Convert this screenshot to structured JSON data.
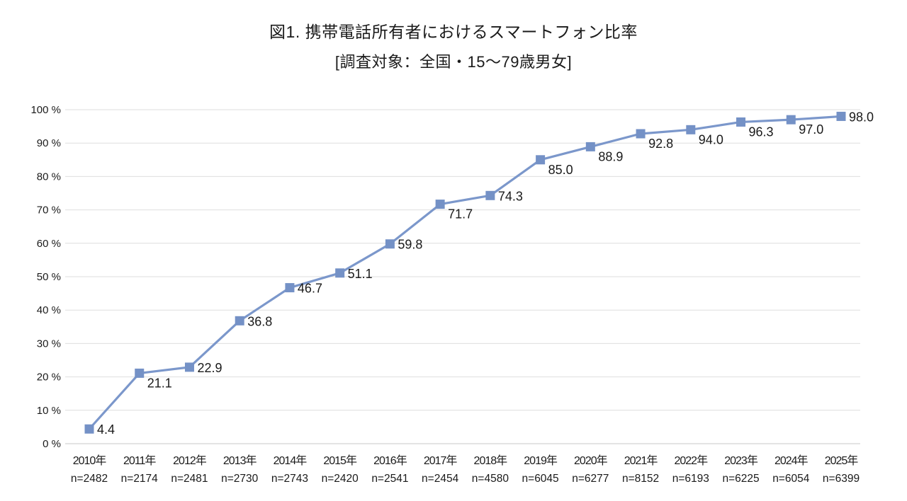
{
  "colors": {
    "line": "#7B97CB",
    "marker": "#7491C6",
    "gridline": "#DEDEDE",
    "axis_line": "#C9C9C9",
    "text": "#1A1A1A"
  },
  "chart_data": {
    "type": "line",
    "title": "図1. 携帯電話所有者におけるスマートフォン比率",
    "subtitle": "[調査対象：全国・15〜79歳男女]",
    "categories": [
      "2010年",
      "2011年",
      "2012年",
      "2013年",
      "2014年",
      "2015年",
      "2016年",
      "2017年",
      "2018年",
      "2019年",
      "2020年",
      "2021年",
      "2022年",
      "2023年",
      "2024年",
      "2025年"
    ],
    "n_labels": [
      "n=2482",
      "n=2174",
      "n=2481",
      "n=2730",
      "n=2743",
      "n=2420",
      "n=2541",
      "n=2454",
      "n=4580",
      "n=6045",
      "n=6277",
      "n=8152",
      "n=6193",
      "n=6225",
      "n=6054",
      "n=6399"
    ],
    "values": [
      4.4,
      21.1,
      22.9,
      36.8,
      46.7,
      51.1,
      59.8,
      71.7,
      74.3,
      85.0,
      88.9,
      92.8,
      94.0,
      96.3,
      97.0,
      98.0
    ],
    "value_labels": [
      "4.4",
      "21.1",
      "22.9",
      "36.8",
      "46.7",
      "51.1",
      "59.8",
      "71.7",
      "74.3",
      "85.0",
      "88.9",
      "92.8",
      "94.0",
      "96.3",
      "97.0",
      "98.0"
    ],
    "y_ticks": [
      "100 %",
      "90 %",
      "80 %",
      "70 %",
      "60 %",
      "50 %",
      "40 %",
      "30 %",
      "20 %",
      "10 %",
      "0 %"
    ],
    "ylim": [
      0,
      100
    ],
    "grid": true,
    "legend": "none",
    "marker": "square",
    "data_labels": true
  }
}
